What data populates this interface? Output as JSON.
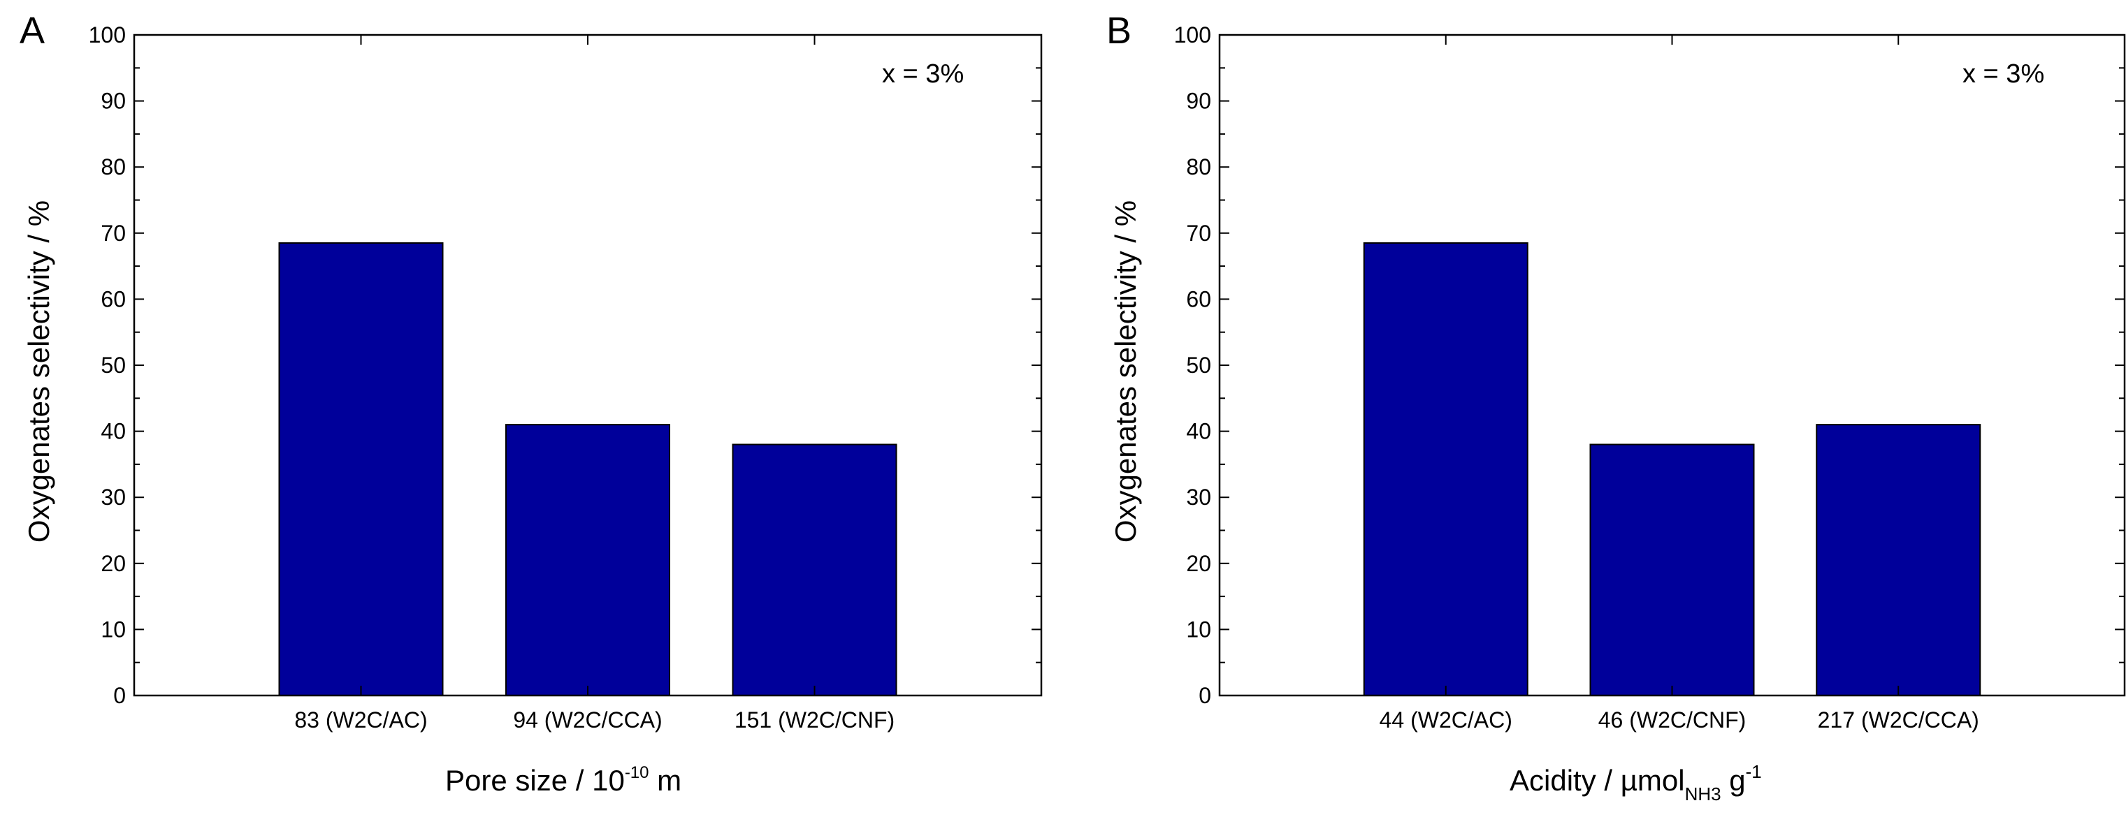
{
  "figure": {
    "panels": [
      {
        "label": "A",
        "annotation": "x = 3%",
        "xlabel": {
          "main": "Pore size / 10",
          "sup": "-10",
          "tail": " m"
        },
        "ylabel": "Oxygenates selectivity / %"
      },
      {
        "label": "B",
        "annotation": "x = 3%",
        "xlabel": {
          "main": "Acidity / µmol",
          "sub": "NH3",
          "mid": " g",
          "sup": "-1"
        },
        "ylabel": "Oxygenates selectivity / %"
      }
    ]
  },
  "colors": {
    "bar": "#00009a",
    "axis": "#000000"
  },
  "chart_data": [
    {
      "type": "bar",
      "title": "A",
      "categories": [
        "83 (W2C/AC)",
        "94 (W2C/CCA)",
        "151 (W2C/CNF)"
      ],
      "values": [
        68.5,
        41,
        38
      ],
      "xlabel": "Pore size / 10^-10 m",
      "ylabel": "Oxygenates selectivity / %",
      "ylim": [
        0,
        100
      ],
      "yticks": [
        0,
        10,
        20,
        30,
        40,
        50,
        60,
        70,
        80,
        90,
        100
      ],
      "annotation": "x = 3%",
      "legend": "none",
      "grid": false
    },
    {
      "type": "bar",
      "title": "B",
      "categories": [
        "44 (W2C/AC)",
        "46 (W2C/CNF)",
        "217 (W2C/CCA)"
      ],
      "values": [
        68.5,
        38,
        41
      ],
      "xlabel": "Acidity / µmol_NH3 g^-1",
      "ylabel": "Oxygenates selectivity / %",
      "ylim": [
        0,
        100
      ],
      "yticks": [
        0,
        10,
        20,
        30,
        40,
        50,
        60,
        70,
        80,
        90,
        100
      ],
      "annotation": "x = 3%",
      "legend": "none",
      "grid": false
    }
  ]
}
